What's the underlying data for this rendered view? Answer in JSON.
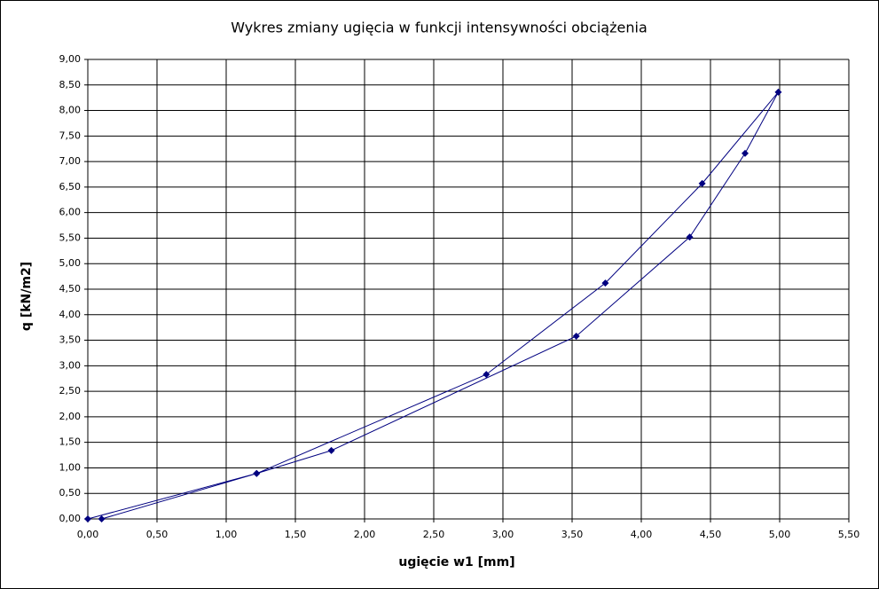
{
  "chart_data": {
    "type": "scatter",
    "title": "Wykres zmiany ugięcia w funkcji intensywności obciążenia",
    "x_label": "ugięcie w1 [mm]",
    "y_label": "q [kN/m2]",
    "series": [
      {
        "color": "#000080",
        "x": [
          0,
          1.22,
          2.88,
          3.74,
          4.44,
          4.99,
          4.75,
          4.35,
          3.53,
          1.76,
          1.22,
          0.1
        ],
        "values": [
          0,
          0.89,
          2.83,
          4.62,
          6.57,
          8.36,
          7.16,
          5.52,
          3.58,
          1.34,
          0.89,
          0
        ]
      }
    ],
    "xlim": [
      0,
      5.5
    ],
    "ylim": [
      0,
      9
    ],
    "xticks": [
      {
        "value": 0,
        "label": "0,00"
      },
      {
        "value": 0.5,
        "label": "0,50"
      },
      {
        "value": 1,
        "label": "1,00"
      },
      {
        "value": 1.5,
        "label": "1,50"
      },
      {
        "value": 2,
        "label": "2,00"
      },
      {
        "value": 2.5,
        "label": "2,50"
      },
      {
        "value": 3,
        "label": "3,00"
      },
      {
        "value": 3.5,
        "label": "3,50"
      },
      {
        "value": 4,
        "label": "4,00"
      },
      {
        "value": 4.5,
        "label": "4,50"
      },
      {
        "value": 5,
        "label": "5,00"
      },
      {
        "value": 5.5,
        "label": "5,50"
      }
    ],
    "yticks": [
      {
        "value": 0,
        "label": "0,00"
      },
      {
        "value": 0.5,
        "label": "0,50"
      },
      {
        "value": 1,
        "label": "1,00"
      },
      {
        "value": 1.5,
        "label": "1,50"
      },
      {
        "value": 2,
        "label": "2,00"
      },
      {
        "value": 2.5,
        "label": "2,50"
      },
      {
        "value": 3,
        "label": "3,00"
      },
      {
        "value": 3.5,
        "label": "3,50"
      },
      {
        "value": 4,
        "label": "4,00"
      },
      {
        "value": 4.5,
        "label": "4,50"
      },
      {
        "value": 5,
        "label": "5,00"
      },
      {
        "value": 5.5,
        "label": "5,50"
      },
      {
        "value": 6,
        "label": "6,00"
      },
      {
        "value": 6.5,
        "label": "6,50"
      },
      {
        "value": 7,
        "label": "7,00"
      },
      {
        "value": 7.5,
        "label": "7,50"
      },
      {
        "value": 8,
        "label": "8,00"
      },
      {
        "value": 8.5,
        "label": "8,50"
      },
      {
        "value": 9,
        "label": "9,00"
      }
    ],
    "grid": true
  }
}
